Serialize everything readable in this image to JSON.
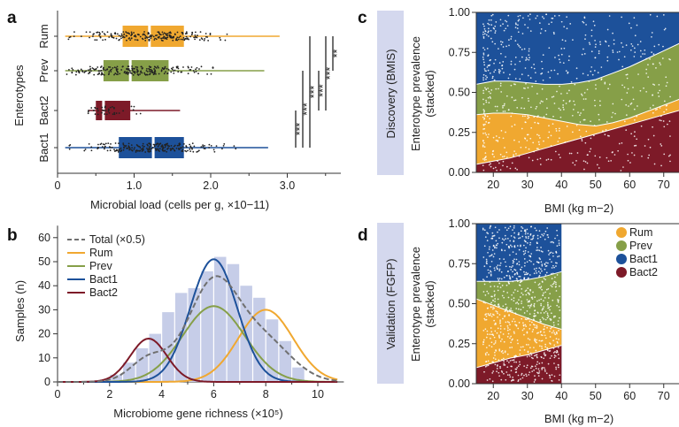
{
  "colors": {
    "Rum": "#f0a830",
    "Prev": "#869f48",
    "Bact1": "#1d519a",
    "Bact2": "#7d1a28",
    "Total": "#707070",
    "hist": "#c6cde8",
    "band": "#d4d8ee"
  },
  "panels": {
    "a": "a",
    "b": "b",
    "c": "c",
    "d": "d"
  },
  "chart_data": [
    {
      "id": "a",
      "type": "boxplot",
      "xlabel": "Microbial load (cells per g, ×10−11)",
      "ylabel": "Enterotypes",
      "xlim": [
        0,
        3.7
      ],
      "xticks": [
        "0",
        "1.0",
        "2.0",
        "3.0"
      ],
      "categories": [
        "Rum",
        "Prev",
        "Bact2",
        "Bact1"
      ],
      "boxes": [
        {
          "name": "Rum",
          "min": 0.1,
          "q1": 0.85,
          "median": 1.2,
          "q3": 1.65,
          "max": 2.9
        },
        {
          "name": "Prev",
          "min": 0.1,
          "q1": 0.6,
          "median": 0.95,
          "q3": 1.45,
          "max": 2.7
        },
        {
          "name": "Bact2",
          "min": 0.4,
          "q1": 0.5,
          "median": 0.6,
          "q3": 0.95,
          "max": 1.6
        },
        {
          "name": "Bact1",
          "min": 0.1,
          "q1": 0.8,
          "median": 1.25,
          "q3": 1.65,
          "max": 2.75
        }
      ],
      "significance": [
        "**",
        "***",
        "***",
        "***",
        "***",
        "***"
      ]
    },
    {
      "id": "b",
      "type": "histogram+line",
      "xlabel": "Microbiome gene richness (×10⁵)",
      "ylabel": "Samples (n)",
      "xlim": [
        0,
        11
      ],
      "ylim": [
        0,
        65
      ],
      "xticks": [
        "0",
        "2",
        "4",
        "6",
        "8",
        "10"
      ],
      "yticks": [
        "0",
        "10",
        "20",
        "30",
        "40",
        "50",
        "60"
      ],
      "legend": [
        "Total (×0.5)",
        "Rum",
        "Prev",
        "Bact1",
        "Bact2"
      ],
      "hist_bins": [
        2.0,
        2.5,
        3.0,
        3.5,
        4.0,
        4.5,
        5.0,
        5.5,
        6.0,
        6.5,
        7.0,
        7.5,
        8.0,
        8.5,
        9.0
      ],
      "hist_values": [
        3,
        8,
        14,
        20,
        29,
        37,
        39,
        46,
        52,
        49,
        40,
        35,
        26,
        17,
        6
      ],
      "series": [
        {
          "name": "Rum",
          "mean": 8.0,
          "sd": 1.05,
          "peak": 30
        },
        {
          "name": "Prev",
          "mean": 6.0,
          "sd": 1.2,
          "peak": 31.5
        },
        {
          "name": "Bact1",
          "mean": 6.0,
          "sd": 0.9,
          "peak": 51
        },
        {
          "name": "Bact2",
          "mean": 3.5,
          "sd": 0.7,
          "peak": 18
        },
        {
          "name": "Total (×0.5)",
          "note": "sum of components ×0.5"
        }
      ]
    },
    {
      "id": "c",
      "type": "area",
      "title": "Discovery (BMIS)",
      "xlabel": "BMI (kg m−2)",
      "ylabel": "Enterotype prevalence (stacked)",
      "xlim": [
        15,
        75
      ],
      "ylim": [
        0,
        1
      ],
      "xticks": [
        "20",
        "30",
        "40",
        "50",
        "60",
        "70"
      ],
      "yticks": [
        "0.00",
        "0.25",
        "0.50",
        "0.75",
        "1.00"
      ],
      "x": [
        15,
        20,
        25,
        30,
        35,
        40,
        45,
        50,
        55,
        60,
        65,
        70,
        75
      ],
      "bact2_top": [
        0.05,
        0.07,
        0.09,
        0.12,
        0.15,
        0.18,
        0.21,
        0.24,
        0.27,
        0.3,
        0.33,
        0.36,
        0.39
      ],
      "rum_top": [
        0.36,
        0.37,
        0.37,
        0.36,
        0.34,
        0.32,
        0.3,
        0.29,
        0.31,
        0.34,
        0.38,
        0.42,
        0.46
      ],
      "prev_top": [
        0.55,
        0.57,
        0.57,
        0.56,
        0.55,
        0.55,
        0.56,
        0.58,
        0.62,
        0.66,
        0.71,
        0.76,
        0.81
      ]
    },
    {
      "id": "d",
      "type": "area",
      "title": "Validation (FGFP)",
      "xlabel": "BMI (kg m−2)",
      "ylabel": "Enterotype prevalence (stacked)",
      "xlim": [
        15,
        75
      ],
      "ylim": [
        0,
        1
      ],
      "xticks": [
        "20",
        "30",
        "40",
        "50",
        "60",
        "70"
      ],
      "yticks": [
        "0.00",
        "0.25",
        "0.50",
        "0.75",
        "1.00"
      ],
      "x": [
        15,
        20,
        25,
        30,
        35,
        40
      ],
      "bact2_top": [
        0.1,
        0.13,
        0.16,
        0.18,
        0.21,
        0.24
      ],
      "rum_top": [
        0.53,
        0.49,
        0.45,
        0.41,
        0.37,
        0.34
      ],
      "prev_top": [
        0.64,
        0.64,
        0.64,
        0.65,
        0.67,
        0.7
      ],
      "legend": [
        "Rum",
        "Prev",
        "Bact1",
        "Bact2"
      ]
    }
  ]
}
